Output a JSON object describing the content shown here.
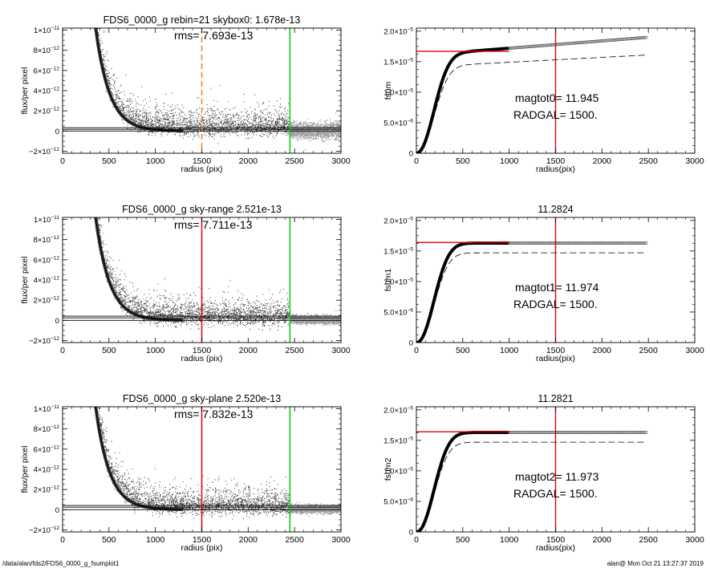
{
  "footer": {
    "left": "/data/alan/fds2/FDS6_0000_g_fsumplot1",
    "right": "alan@  Mon Oct 21 13:27:37 2019"
  },
  "colors": {
    "axes": "#000000",
    "scatter_dark": "#333333",
    "scatter_light": "#9a9a9a",
    "red": "#e00000",
    "green": "#00cc00",
    "orange": "#f08020",
    "marker": "#555555"
  },
  "chart_data": [
    {
      "type": "scatter",
      "title": "FDS6_0000_g rebin=21    skybox0:  1.678e-13",
      "annotation": "rms= 7.693e-13",
      "xlabel": "radius (pix)",
      "ylabel": "flux/per pixel",
      "xlim": [
        0,
        3000
      ],
      "ylim": [
        -2.2e-12,
        1.02e-11
      ],
      "xticks": [
        0,
        500,
        1000,
        1500,
        2000,
        2500,
        3000
      ],
      "xticklabels": [
        "0",
        "500",
        "1000",
        "1500",
        "2000",
        "2500",
        "3000"
      ],
      "yticks": [
        -2e-12,
        0,
        2e-12,
        4e-12,
        6e-12,
        8e-12,
        1e-11
      ],
      "ytick_mant": [
        "−2×10",
        "0",
        "2×10",
        "4×10",
        "6×10",
        "8×10",
        "1×10"
      ],
      "ytick_exp": [
        "−12",
        "",
        "−12",
        "−12",
        "−12",
        "−12",
        "−11"
      ],
      "profile": {
        "amp": 1.1e-10,
        "scale": 150
      },
      "hlines": [
        0,
        1.678e-13,
        3.3e-13
      ],
      "vlines": [
        {
          "x": 1500,
          "color": "orange",
          "dash": true
        },
        {
          "x": 2450,
          "color": "green",
          "dash": false
        }
      ],
      "light_from": 2450,
      "light_spread": 8e-13,
      "grid": false
    },
    {
      "type": "line",
      "title": "",
      "annotations": [
        "magtot0=  11.945",
        "RADGAL=   1500."
      ],
      "xlabel": "radius(pix)",
      "ylabel": "fsum",
      "xlim": [
        0,
        3000
      ],
      "ylim": [
        0,
        2.05e-05
      ],
      "xticks": [
        0,
        500,
        1000,
        1500,
        2000,
        2500,
        3000
      ],
      "xticklabels": [
        "0",
        "500",
        "1000",
        "1500",
        "2000",
        "2500",
        "3000"
      ],
      "yticks": [
        0,
        5e-06,
        1e-05,
        1.5e-05,
        2e-05
      ],
      "ytick_mant": [
        "0",
        "5.0×10",
        "1.0×10",
        "1.5×10",
        "2.0×10"
      ],
      "ytick_exp": [
        "",
        "−6",
        "−5",
        "−5",
        "−5"
      ],
      "curve": {
        "plateau": 1.6e-05,
        "tail_slope": 1.2e-09,
        "scale": 250
      },
      "dashed": {
        "plateau": 1.41e-05,
        "tail_slope": 8e-10
      },
      "x_end": 2480,
      "hline": {
        "y": 1.67e-05,
        "x0": 0,
        "x1": 1000
      },
      "vline": 1500,
      "grid": false
    },
    {
      "type": "scatter",
      "title": "FDS6_0000_g sky-range  2.521e-13",
      "annotation": "rms= 7.711e-13",
      "xlabel": "radius (pix)",
      "ylabel": "flux/per pixel",
      "xlim": [
        0,
        3000
      ],
      "ylim": [
        -2.2e-12,
        1.02e-11
      ],
      "xticks": [
        0,
        500,
        1000,
        1500,
        2000,
        2500,
        3000
      ],
      "xticklabels": [
        "0",
        "500",
        "1000",
        "1500",
        "2000",
        "2500",
        "3000"
      ],
      "yticks": [
        -2e-12,
        0,
        2e-12,
        4e-12,
        6e-12,
        8e-12,
        1e-11
      ],
      "ytick_mant": [
        "−2×10",
        "0",
        "2×10",
        "4×10",
        "6×10",
        "8×10",
        "1×10"
      ],
      "ytick_exp": [
        "−12",
        "",
        "−12",
        "−12",
        "−12",
        "−12",
        "−11"
      ],
      "profile": {
        "amp": 1.1e-10,
        "scale": 150
      },
      "hlines": [
        0,
        2.521e-13,
        4.2e-13
      ],
      "vlines": [
        {
          "x": 1500,
          "color": "red",
          "dash": false
        },
        {
          "x": 2450,
          "color": "green",
          "dash": false
        }
      ],
      "light_from": 2450,
      "light_spread": 4e-13,
      "grid": false
    },
    {
      "type": "line",
      "title": "11.2824",
      "annotations": [
        "magtot1=  11.974",
        "RADGAL=   1500."
      ],
      "xlabel": "radius(pix)",
      "ylabel": "fsum1",
      "xlim": [
        0,
        3000
      ],
      "ylim": [
        0,
        2.05e-05
      ],
      "xticks": [
        0,
        500,
        1000,
        1500,
        2000,
        2500,
        3000
      ],
      "xticklabels": [
        "0",
        "500",
        "1000",
        "1500",
        "2000",
        "2500",
        "3000"
      ],
      "yticks": [
        0,
        5e-06,
        1e-05,
        1.5e-05,
        2e-05
      ],
      "ytick_mant": [
        "0",
        "5.0×10",
        "1.0×10",
        "1.5×10",
        "2.0×10"
      ],
      "ytick_exp": [
        "",
        "−6",
        "−5",
        "−5",
        "−5"
      ],
      "curve": {
        "plateau": 1.63e-05,
        "tail_slope": 0,
        "scale": 250
      },
      "dashed": {
        "plateau": 1.47e-05,
        "tail_slope": 0
      },
      "x_end": 2480,
      "hline": {
        "y": 1.64e-05,
        "x0": 0,
        "x1": 1000
      },
      "vline": 1500,
      "grid": false
    },
    {
      "type": "scatter",
      "title": "FDS6_0000_g sky-plane  2.520e-13",
      "annotation": "rms= 7.832e-13",
      "xlabel": "radius (pix)",
      "ylabel": "flux/per pixel",
      "xlim": [
        0,
        3000
      ],
      "ylim": [
        -2.2e-12,
        1.02e-11
      ],
      "xticks": [
        0,
        500,
        1000,
        1500,
        2000,
        2500,
        3000
      ],
      "xticklabels": [
        "0",
        "500",
        "1000",
        "1500",
        "2000",
        "2500",
        "3000"
      ],
      "yticks": [
        -2e-12,
        0,
        2e-12,
        4e-12,
        6e-12,
        8e-12,
        1e-11
      ],
      "ytick_mant": [
        "−2×10",
        "0",
        "2×10",
        "4×10",
        "6×10",
        "8×10",
        "1×10"
      ],
      "ytick_exp": [
        "−12",
        "",
        "−12",
        "−12",
        "−12",
        "−12",
        "−11"
      ],
      "profile": {
        "amp": 1.1e-10,
        "scale": 150
      },
      "hlines": [
        0,
        2.52e-13,
        4.2e-13
      ],
      "vlines": [
        {
          "x": 1500,
          "color": "red",
          "dash": false
        },
        {
          "x": 2450,
          "color": "green",
          "dash": false
        }
      ],
      "light_from": 2450,
      "light_spread": 4e-13,
      "grid": false
    },
    {
      "type": "line",
      "title": "11.2821",
      "annotations": [
        "magtot2=  11.973",
        "RADGAL=   1500."
      ],
      "xlabel": "radius(pix)",
      "ylabel": "fsum2",
      "xlim": [
        0,
        3000
      ],
      "ylim": [
        0,
        2.05e-05
      ],
      "xticks": [
        0,
        500,
        1000,
        1500,
        2000,
        2500,
        3000
      ],
      "xticklabels": [
        "0",
        "500",
        "1000",
        "1500",
        "2000",
        "2500",
        "3000"
      ],
      "yticks": [
        0,
        5e-06,
        1e-05,
        1.5e-05,
        2e-05
      ],
      "ytick_mant": [
        "0",
        "5.0×10",
        "1.0×10",
        "1.5×10",
        "2.0×10"
      ],
      "ytick_exp": [
        "",
        "−6",
        "−5",
        "−5",
        "−5"
      ],
      "curve": {
        "plateau": 1.63e-05,
        "tail_slope": 0,
        "scale": 250
      },
      "dashed": {
        "plateau": 1.47e-05,
        "tail_slope": 0
      },
      "x_end": 2480,
      "hline": {
        "y": 1.64e-05,
        "x0": 0,
        "x1": 1000
      },
      "vline": 1500,
      "grid": false
    }
  ]
}
